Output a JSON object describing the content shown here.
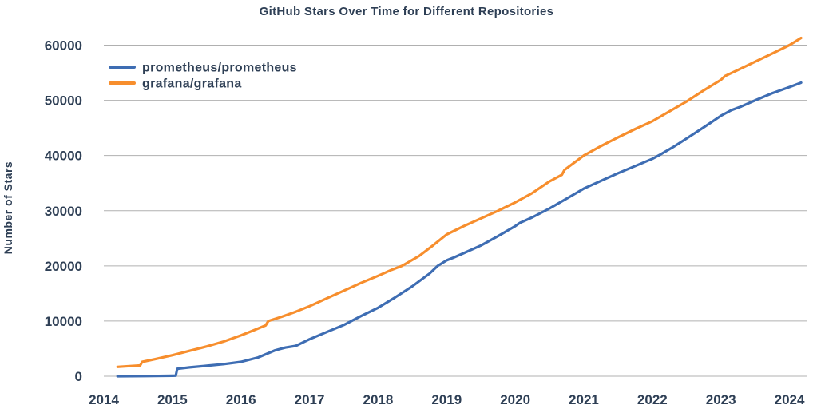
{
  "colors": {
    "text": "#2e3f55",
    "grid": "#b0b0b0",
    "background": "#ffffff",
    "prometheus_blue": "#3e6db3",
    "grafana_orange": "#f78e2d"
  },
  "chart_data": {
    "type": "line",
    "title": "GitHub Stars Over Time for Different Repositories",
    "xlabel": "",
    "ylabel": "Number of Stars",
    "xlim": [
      2014.0,
      2024.25
    ],
    "ylim": [
      0,
      60000
    ],
    "x_ticks": [
      2014,
      2015,
      2016,
      2017,
      2018,
      2019,
      2020,
      2021,
      2022,
      2023,
      2024
    ],
    "y_ticks": [
      0,
      10000,
      20000,
      30000,
      40000,
      50000,
      60000
    ],
    "grid": "horizontal",
    "legend_position": "upper-left",
    "series": [
      {
        "name": "prometheus/prometheus",
        "color": "#3e6db3",
        "x": [
          2014.2,
          2014.6,
          2015.0,
          2015.05,
          2015.07,
          2015.25,
          2015.5,
          2015.75,
          2016.0,
          2016.25,
          2016.5,
          2016.65,
          2016.8,
          2017.0,
          2017.25,
          2017.5,
          2017.75,
          2018.0,
          2018.25,
          2018.5,
          2018.75,
          2018.87,
          2019.0,
          2019.1,
          2019.25,
          2019.5,
          2019.75,
          2020.0,
          2020.07,
          2020.25,
          2020.5,
          2020.75,
          2021.0,
          2021.25,
          2021.5,
          2021.75,
          2022.0,
          2022.12,
          2022.3,
          2022.5,
          2022.75,
          2023.0,
          2023.15,
          2023.3,
          2023.5,
          2023.75,
          2024.0,
          2024.17
        ],
        "y": [
          0,
          30,
          80,
          100,
          1350,
          1600,
          1900,
          2200,
          2600,
          3400,
          4700,
          5200,
          5500,
          6700,
          8000,
          9300,
          10900,
          12400,
          14300,
          16300,
          18600,
          20000,
          21000,
          21500,
          22300,
          23700,
          25400,
          27200,
          27800,
          28800,
          30400,
          32200,
          34000,
          35400,
          36800,
          38100,
          39400,
          40200,
          41500,
          43100,
          45100,
          47200,
          48200,
          48900,
          50000,
          51300,
          52400,
          53200
        ]
      },
      {
        "name": "grafana/grafana",
        "color": "#f78e2d",
        "x": [
          2014.2,
          2014.4,
          2014.53,
          2014.56,
          2014.75,
          2015.0,
          2015.25,
          2015.5,
          2015.75,
          2016.0,
          2016.2,
          2016.36,
          2016.4,
          2016.6,
          2016.8,
          2017.0,
          2017.25,
          2017.5,
          2017.75,
          2018.0,
          2018.2,
          2018.35,
          2018.6,
          2018.8,
          2019.0,
          2019.25,
          2019.5,
          2019.75,
          2020.0,
          2020.25,
          2020.5,
          2020.68,
          2020.72,
          2021.0,
          2021.25,
          2021.5,
          2021.75,
          2022.0,
          2022.25,
          2022.5,
          2022.75,
          2023.0,
          2023.06,
          2023.25,
          2023.5,
          2023.75,
          2024.0,
          2024.17
        ],
        "y": [
          1700,
          1850,
          1950,
          2600,
          3100,
          3800,
          4600,
          5400,
          6300,
          7400,
          8400,
          9200,
          10000,
          10800,
          11700,
          12700,
          14100,
          15500,
          16900,
          18200,
          19300,
          20000,
          21800,
          23700,
          25700,
          27200,
          28600,
          30000,
          31500,
          33200,
          35300,
          36500,
          37400,
          40000,
          41700,
          43300,
          44800,
          46200,
          48000,
          49800,
          51800,
          53700,
          54400,
          55500,
          57000,
          58500,
          60000,
          61300
        ]
      }
    ]
  }
}
